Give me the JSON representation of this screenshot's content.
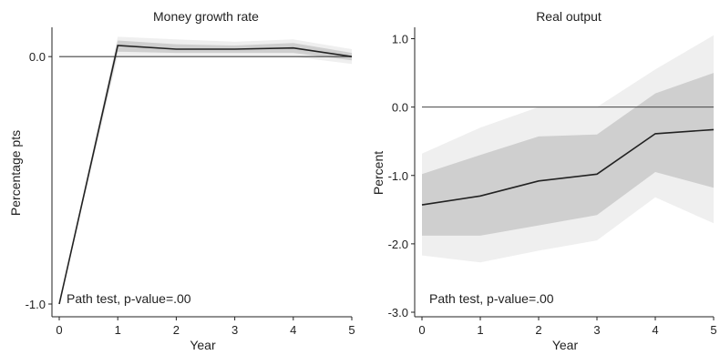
{
  "chart_data": [
    {
      "type": "line",
      "title": "Money growth rate",
      "xlabel": "Year",
      "ylabel": "Percentage pts",
      "xlim": [
        0,
        5
      ],
      "ylim": [
        -1.0,
        0.1
      ],
      "xticks": [
        0,
        1,
        2,
        3,
        4,
        5
      ],
      "xtick_labels": [
        "0",
        "1",
        "2",
        "3",
        "4",
        "5"
      ],
      "yticks": [
        0.0,
        -1.0
      ],
      "ytick_labels": [
        "0.0",
        "-1.0"
      ],
      "zero_line": 0,
      "x": [
        0,
        1,
        2,
        3,
        4,
        5
      ],
      "series": [
        {
          "values": [
            -1.0,
            0.045,
            0.03,
            0.03,
            0.035,
            0.0
          ],
          "bands": [
            {
              "lower": [
                -1.0,
                0.0,
                0.0,
                0.0,
                0.0,
                -0.03
              ],
              "upper": [
                -1.0,
                0.08,
                0.07,
                0.06,
                0.07,
                0.03
              ],
              "color": "#efefef"
            },
            {
              "lower": [
                -1.0,
                0.02,
                0.015,
                0.015,
                0.015,
                -0.015
              ],
              "upper": [
                -1.0,
                0.065,
                0.05,
                0.045,
                0.055,
                0.015
              ],
              "color": "#cfcfcf"
            }
          ]
        }
      ],
      "annotation": "Path test, p-value=.00",
      "grid": false
    },
    {
      "type": "line",
      "title": "Real output",
      "xlabel": "Year",
      "ylabel": "Percent",
      "xlim": [
        0,
        5
      ],
      "ylim": [
        -3.0,
        1.1
      ],
      "xticks": [
        0,
        1,
        2,
        3,
        4,
        5
      ],
      "xtick_labels": [
        "0",
        "1",
        "2",
        "3",
        "4",
        "5"
      ],
      "yticks": [
        1.0,
        0.0,
        -1.0,
        -2.0,
        -3.0
      ],
      "ytick_labels": [
        "1.0",
        "0.0",
        "-1.0",
        "-2.0",
        "-3.0"
      ],
      "zero_line": 0,
      "x": [
        0,
        1,
        2,
        3,
        4,
        5
      ],
      "series": [
        {
          "values": [
            -1.43,
            -1.3,
            -1.08,
            -0.98,
            -0.39,
            -0.33
          ],
          "bands": [
            {
              "lower": [
                -2.17,
                -2.27,
                -2.1,
                -1.95,
                -1.32,
                -1.7
              ],
              "upper": [
                -0.68,
                -0.3,
                0.0,
                0.0,
                0.55,
                1.05
              ],
              "color": "#efefef"
            },
            {
              "lower": [
                -1.88,
                -1.88,
                -1.73,
                -1.58,
                -0.95,
                -1.18
              ],
              "upper": [
                -0.98,
                -0.7,
                -0.43,
                -0.4,
                0.2,
                0.5
              ],
              "color": "#cfcfcf"
            }
          ]
        }
      ],
      "annotation": "Path test, p-value=.00",
      "grid": false
    }
  ],
  "colors": {
    "line": "#222222",
    "zero_line": "#444444",
    "axis": "#222222"
  }
}
